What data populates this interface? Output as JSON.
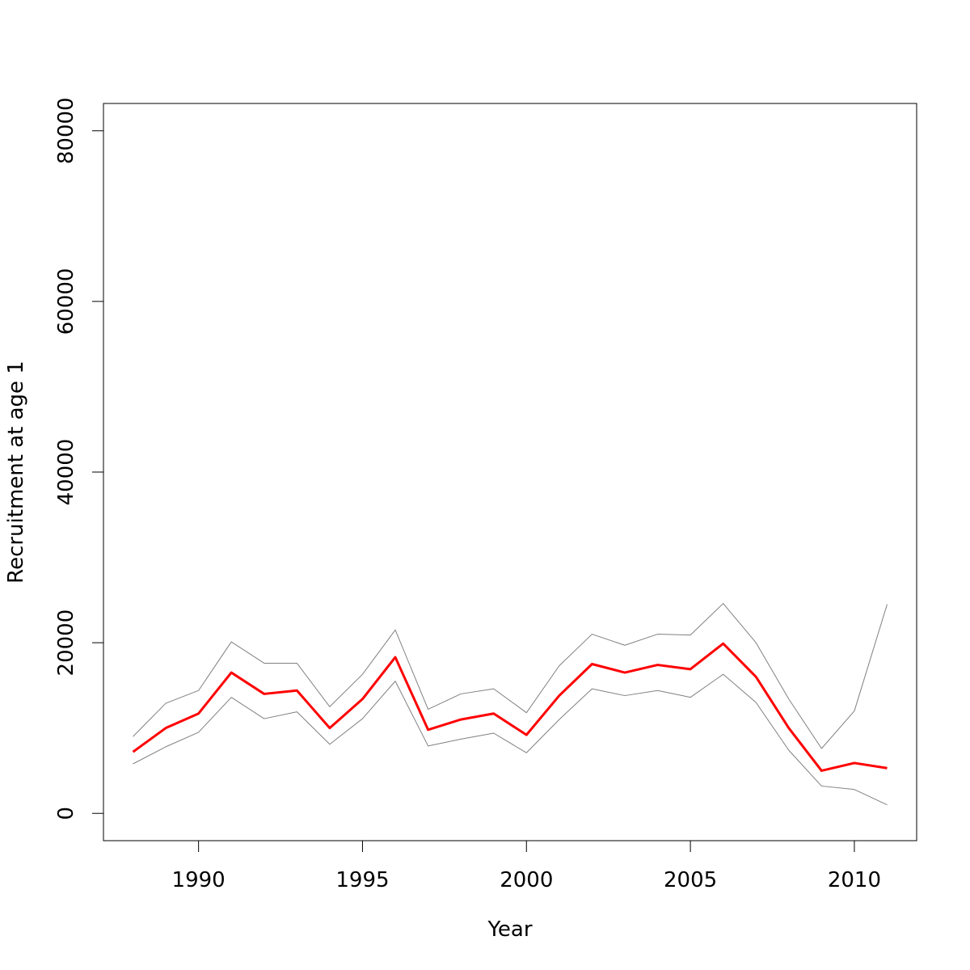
{
  "chart_data": {
    "type": "line",
    "title": "",
    "xlabel": "Year",
    "ylabel": "Recruitment at age 1",
    "xlim": [
      1987.1,
      2011.9
    ],
    "ylim": [
      -3200,
      83200
    ],
    "x_ticks": [
      "1990",
      "1995",
      "2000",
      "2005",
      "2010"
    ],
    "y_ticks": [
      "0",
      "20000",
      "40000",
      "60000",
      "80000"
    ],
    "grid": false,
    "legend": "none",
    "x": [
      1988,
      1989,
      1990,
      1991,
      1992,
      1993,
      1994,
      1995,
      1996,
      1997,
      1998,
      1999,
      2000,
      2001,
      2002,
      2003,
      2004,
      2005,
      2006,
      2007,
      2008,
      2009,
      2010,
      2011
    ],
    "series": [
      {
        "role": "estimate",
        "color": "#ff0000",
        "values": [
          7200,
          10000,
          11700,
          16500,
          14000,
          14400,
          10000,
          13400,
          18300,
          9800,
          11000,
          11700,
          9200,
          13800,
          17500,
          16500,
          17400,
          16900,
          19900,
          16000,
          10000,
          5000,
          5900,
          5300
        ]
      },
      {
        "role": "upper",
        "color": "#808080",
        "values": [
          9000,
          12900,
          14400,
          20100,
          17600,
          17600,
          12500,
          16300,
          21500,
          12200,
          14000,
          14600,
          11800,
          17300,
          21000,
          19700,
          21000,
          20900,
          24600,
          20000,
          13400,
          7600,
          12000,
          24500
        ]
      },
      {
        "role": "lower",
        "color": "#808080",
        "values": [
          5800,
          7800,
          9500,
          13600,
          11100,
          11900,
          8100,
          11100,
          15500,
          7900,
          8700,
          9400,
          7100,
          11000,
          14600,
          13800,
          14400,
          13600,
          16300,
          13000,
          7400,
          3200,
          2800,
          1000
        ]
      }
    ]
  }
}
